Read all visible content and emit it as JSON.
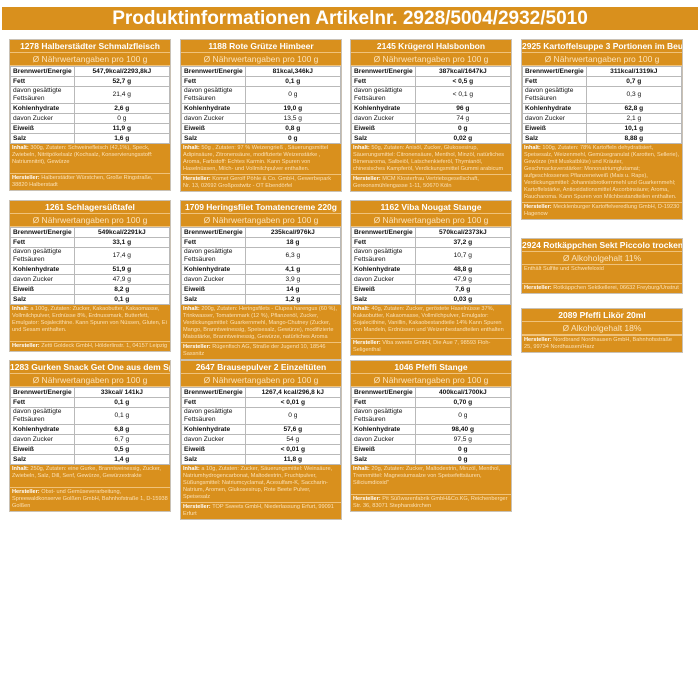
{
  "title": "Produktinformationen Artikelnr. 2928/5004/2932/5010",
  "row_labels": [
    "Brennwert/Energie",
    "Fett",
    "davon gesättigte Fettsäuren",
    "Kohlenhydrate",
    "davon Zucker",
    "Eiweiß",
    "Salz"
  ],
  "subheader": "Ø Nährwertangaben pro 100 g",
  "ingredients_label": "Inhalt:",
  "manufacturer_label": "Hersteller:",
  "colors": {
    "accent": "#d9901d",
    "light_text": "#fbe0b4"
  },
  "products": [
    {
      "name": "1278 Halberstädter Schmalzfleisch",
      "values": [
        "547,9kcal/2293,8kJ",
        "52,7 g",
        "21,4 g",
        "2,6 g",
        "0 g",
        "11,9 g",
        "1,6 g"
      ],
      "ingredients": "300g, Zutaten: Schweinefleisch (42,1%), Speck, Zwiebeln, Nitritpökelsalz (Kochsalz, Konservierungsstoff: Natriumnitrit), Gewürze",
      "manufacturer": "Halberstädter Würstchen, Große Ringstraße, 38820 Halberstadt"
    },
    {
      "name": "1188 Rote Grütze Himbeer",
      "values": [
        "81kcal,346kJ",
        "0,1 g",
        "0 g",
        "19,0 g",
        "13,5 g",
        "0,8 g",
        "0 g"
      ],
      "ingredients": "50g , Zutaten: 97 % Weizengrieß , Säuerungsmittel Adipinsäure, Zitronensäure, modifizierte Weizenstärke , Aroma, Farbstoff: Echtes Karmin. Kann Spuren von Haselnüssen, Milch- und Vollmilchpulver enthalten.",
      "manufacturer": "Komet Gerolf Pöhle & Co. GmbH, Gewerbepark Nr. 13, 02692 Großpostwitz - OT Ebendörfel"
    },
    {
      "name": "2145 Krügerol Halsbonbon",
      "values": [
        "387kcal/1647kJ",
        "< 0,5 g",
        "< 0,1 g",
        "96 g",
        "74 g",
        "0 g",
        "0,02 g"
      ],
      "ingredients": "50g, Zutaten: Anisöl, Zucker, Glukosesirup, Säuerungsmittel: Citronensäure, Menthol, Minzöl, natürliches Birnenaroma, Salbeiöl, Latschenkieferöl, Thymianöl, chinesisches Kampferöl, Verdickungsmittel Gummi arabicum",
      "manufacturer": "MCM Klosterfrau Vertriebsgesellschaft, Gereonsmühlengasse 1-11, 50670 Köln"
    },
    {
      "name": "2925 Kartoffelsuppe 3 Portionen im Beutel",
      "values": [
        "311kcal/1319kJ",
        "0,7 g",
        "0,3 g",
        "62,8 g",
        "2,1 g",
        "10,1 g",
        "8,88 g"
      ],
      "ingredients": "100g, Zutaten: 78% Kartoffeln dehydratisiert, Speisesalz, Weizenmehl, Gemüsegranulat (Karotten, Sellerie), Gewürze (mit Muskatblüte) und Kräuter, Geschmacksverstärker: Mononatriumglutamat; aufgeschlossenes Pflanzeneiweiß (Mais u. Raps), Verdickungsmittel: Johannisbrotkernmehl und Guarkernmehl; Kartoffelstärke, Antioxidationsmittel Ascorbinsäure; Aroma, Raucharoma. Kann Spuren von Milchbestandteilen enthalten.",
      "manufacturer": "Mecklenburger Kartoffelveredlung GmbH, D-19230 Hagenow"
    },
    {
      "name": "1261 Schlagersüßtafel",
      "values": [
        "549kcal/2291kJ",
        "33,1 g",
        "17,4 g",
        "51,9 g",
        "47,9 g",
        "8,2 g",
        "0,1 g"
      ],
      "ingredients": "a 100g, Zutaten: Zucker, Kakaobutter, Kakaomasse, Vollmilchpulver, Erdnüsse 8%, Erdnussmark, Butterfett, Emulgator: Sojalecithine. Kann Spuren von Nüssen, Gluten, Ei und Sesam enthalten.",
      "manufacturer": "Zetti Goldeck GmbH, Hölderlinstr. 1, 04157 Leipzig"
    },
    {
      "name": "1709 Heringsfilet Tomatencreme 220g",
      "values": [
        "235kcal/976kJ",
        "18 g",
        "6,3 g",
        "4,1 g",
        "3,9 g",
        "14 g",
        "1,2 g"
      ],
      "ingredients": "200g, Zutaten: Heringsfilets - Clupea harengus (60 %), Trinkwasser, Tomatenmark (12 %), Pflanzenöl, Zucker, Verdickungsmittel: Guarkernmehl, Mango-Chutney (Zucker, Mango, Branntweinessig, Speisesalz, Gewürze), modifizierte Maisstärke, Branntweinessig, Gewürze, natürliches Aroma",
      "manufacturer": "Rügenfisch AG, Straße der Jugend 10, 18546 Sassnitz"
    },
    {
      "name": "1162 Viba Nougat Stange",
      "values": [
        "570kcal/2373kJ",
        "37,2 g",
        "10,7 g",
        "48,8 g",
        "47,9 g",
        "7,6 g",
        "0,03 g"
      ],
      "ingredients": "40g, Zutaten: Zucker, geröstete Haselnüsse 37%, Kakaobutter, Kakaomasse, Vollmilchpulver, Emulgator: Sojalecithine, Vanillin, Kakaobestandteile 14% Kann Spuren von Mandeln, Erdnüssen und Weizenbestandteilen enthalten",
      "manufacturer": "Viba sweets GmbH, Die Aue 7, 98593 Floh-Seligenthal"
    },
    {
      "name": "1283 Gurken Snack Get One aus dem Spree",
      "values": [
        "33kcal/ 141kJ",
        "0,1 g",
        "0,1 g",
        "6,8 g",
        "6,7 g",
        "0,5 g",
        "1,4 g"
      ],
      "ingredients": "250g, Zutaten: eine Gurke, Branntweinessig, Zucker, Zwiebeln, Salz, Dill, Senf, Gewürze, Gewürzextrakte",
      "manufacturer": "Obst- und Gemüseverarbeitung, Spreewaldkonserve Golßen GmbH, Bahnhofstraße 1, D-15938 Golßen"
    },
    {
      "name": "2647 Brausepulver 2 Einzeltüten",
      "values": [
        "1267,4 kcal/296,8 kJ",
        "< 0,01 g",
        "0 g",
        "57,6 g",
        "54 g",
        "< 0,01 g",
        "11,8 g"
      ],
      "ingredients": "a 10g, Zutaten: Zucker, Säuerungsmittel: Weinsäure, Natriumhydrogencarbonat, Maltodextrin, Fruchtpulver, Süßungsmittel: Natriumcyclamat, Acesulfam-K, Saccharin-Natrium, Aromen, Glukosesirup, Rote Beete Pulver, Speisesalz",
      "manufacturer": "TOP Sweets GmbH, Niederlassung Erfurt, 99091 Erfurt"
    },
    {
      "name": "1046 Pfeffi Stange",
      "values": [
        "400kcal/1700kJ",
        "0,70 g",
        "0 g",
        "98,40 g",
        "97,5 g",
        "0 g",
        "0 g"
      ],
      "ingredients": "20g, Zutaten: Zucker, Maltodextrin, Minzöl, Menthol, Trennmittel: Magnesiumsalze von Speisefettsäuren, Siliciumdioxid\"",
      "manufacturer": "Pit Süßwarenfabrik GmbH&Co.KG, Reichenberger Str. 36, 83071 Stephanskirchen"
    }
  ],
  "alcohol": [
    {
      "name": "2924 Rotkäppchen Sekt Piccolo trocken 0,2 l",
      "content": "Ø Alkoholgehalt 11%",
      "note": "Enthält Sulfite und Schwefeloxid",
      "manufacturer": "Rotkäppchen Sektkellerei, 06632 Freyburg/Unstrut"
    },
    {
      "name": "2089 Pfeffi Likör 20ml",
      "content": "Ø Alkoholgehalt 18%",
      "manufacturer": "Nordbrand Nordhausen GmbH, Bahnhofsstraße 25, 99734 Nordhausen/Harz"
    }
  ]
}
